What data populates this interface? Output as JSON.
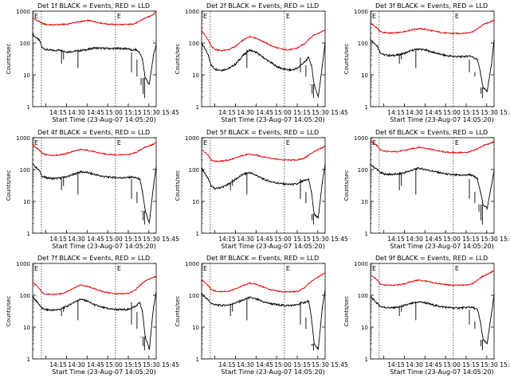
{
  "figure": {
    "time_ticks": [
      "14:15",
      "14:30",
      "14:45",
      "15:00",
      "15:15",
      "15:30",
      "15:45"
    ],
    "xlabel": "Start Time (23-Aug-07 14:05:20)",
    "ylabel": "Counts/sec",
    "y_ticks": [
      "1",
      "10",
      "100",
      "1000"
    ],
    "event_marker": "E",
    "colors": {
      "events": "#000000",
      "lld": "#e00000",
      "axes": "#000000"
    }
  },
  "chart_data": [
    {
      "type": "line",
      "title": "Det 1f BLACK = Events, RED = LLD",
      "ylim": [
        1,
        1000
      ],
      "yscale": "log",
      "grid": false,
      "vlines_min": [
        6.3,
        60.3
      ],
      "x": [
        0,
        5,
        7,
        10,
        15,
        20,
        25,
        30,
        35,
        40,
        45,
        50,
        55,
        60,
        65,
        70,
        72,
        75,
        78,
        80,
        82,
        85,
        88,
        90
      ],
      "series": [
        {
          "name": "Events",
          "values": [
            180,
            120,
            70,
            62,
            58,
            60,
            52,
            55,
            58,
            62,
            70,
            68,
            67,
            67,
            67,
            66,
            58,
            62,
            50,
            30,
            8,
            5,
            40,
            90
          ]
        },
        {
          "name": "LLD",
          "values": [
            600,
            470,
            410,
            380,
            370,
            380,
            390,
            430,
            470,
            510,
            470,
            420,
            390,
            380,
            380,
            380,
            390,
            420,
            480,
            550,
            600,
            680,
            800,
            1000
          ]
        }
      ]
    },
    {
      "type": "line",
      "title": "Det 2f BLACK = Events, RED = LLD",
      "ylim": [
        1,
        1000
      ],
      "yscale": "log",
      "grid": false,
      "vlines_min": [
        6.3,
        60.3
      ],
      "x": [
        0,
        5,
        7,
        10,
        15,
        20,
        25,
        30,
        35,
        40,
        45,
        50,
        55,
        60,
        65,
        70,
        72,
        75,
        78,
        80,
        82,
        85,
        88,
        90
      ],
      "series": [
        {
          "name": "Events",
          "values": [
            100,
            40,
            20,
            15,
            14,
            16,
            22,
            40,
            60,
            50,
            35,
            25,
            18,
            15,
            14,
            16,
            20,
            25,
            35,
            20,
            5,
            2,
            20,
            100
          ]
        },
        {
          "name": "LLD",
          "values": [
            250,
            120,
            80,
            62,
            58,
            62,
            80,
            120,
            160,
            140,
            110,
            85,
            70,
            62,
            62,
            70,
            80,
            95,
            130,
            150,
            180,
            200,
            230,
            260
          ]
        }
      ]
    },
    {
      "type": "line",
      "title": "Det 3f BLACK = Events, RED = LLD",
      "ylim": [
        1,
        1000
      ],
      "yscale": "log",
      "grid": false,
      "vlines_min": [
        6.3,
        60.3
      ],
      "x": [
        0,
        5,
        7,
        10,
        15,
        20,
        25,
        30,
        35,
        40,
        45,
        50,
        55,
        60,
        65,
        70,
        72,
        75,
        78,
        80,
        82,
        85,
        88,
        90
      ],
      "series": [
        {
          "name": "Events",
          "values": [
            130,
            80,
            50,
            42,
            40,
            42,
            48,
            58,
            65,
            60,
            52,
            45,
            40,
            38,
            37,
            38,
            40,
            35,
            30,
            12,
            4,
            3,
            20,
            120
          ]
        },
        {
          "name": "LLD",
          "values": [
            420,
            290,
            230,
            210,
            205,
            210,
            230,
            260,
            280,
            270,
            240,
            220,
            205,
            200,
            200,
            205,
            215,
            230,
            280,
            320,
            380,
            420,
            470,
            520
          ]
        }
      ]
    },
    {
      "type": "line",
      "title": "Det 4f BLACK = Events, RED = LLD",
      "ylim": [
        1,
        1000
      ],
      "yscale": "log",
      "grid": false,
      "vlines_min": [
        6.3,
        60.3
      ],
      "x": [
        0,
        5,
        7,
        10,
        15,
        20,
        25,
        30,
        35,
        40,
        45,
        50,
        55,
        60,
        65,
        70,
        72,
        75,
        78,
        80,
        82,
        85,
        88,
        90
      ],
      "series": [
        {
          "name": "Events",
          "values": [
            150,
            90,
            60,
            55,
            52,
            54,
            60,
            70,
            85,
            80,
            70,
            62,
            58,
            56,
            55,
            56,
            58,
            55,
            50,
            20,
            5,
            2,
            30,
            120
          ]
        },
        {
          "name": "LLD",
          "values": [
            600,
            400,
            320,
            290,
            280,
            290,
            320,
            380,
            420,
            400,
            360,
            320,
            300,
            290,
            290,
            295,
            310,
            340,
            400,
            450,
            500,
            560,
            620,
            700
          ]
        }
      ]
    },
    {
      "type": "line",
      "title": "Det 5f BLACK = Events, RED = LLD",
      "ylim": [
        1,
        1000
      ],
      "yscale": "log",
      "grid": false,
      "vlines_min": [
        6.3,
        60.3
      ],
      "x": [
        0,
        5,
        7,
        10,
        15,
        20,
        25,
        30,
        35,
        40,
        45,
        50,
        55,
        60,
        65,
        70,
        72,
        75,
        78,
        80,
        82,
        85,
        88,
        90
      ],
      "series": [
        {
          "name": "Events",
          "values": [
            110,
            50,
            30,
            25,
            28,
            35,
            50,
            70,
            80,
            65,
            50,
            42,
            38,
            35,
            34,
            35,
            40,
            45,
            50,
            20,
            4,
            3,
            40,
            150
          ]
        },
        {
          "name": "LLD",
          "values": [
            420,
            280,
            200,
            180,
            185,
            200,
            230,
            280,
            300,
            280,
            250,
            230,
            210,
            200,
            198,
            200,
            210,
            230,
            280,
            320,
            370,
            420,
            480,
            560
          ]
        }
      ]
    },
    {
      "type": "line",
      "title": "Det 6f BLACK = Events, RED = LLD",
      "ylim": [
        1,
        1000
      ],
      "yscale": "log",
      "grid": false,
      "vlines_min": [
        6.3,
        60.3
      ],
      "x": [
        0,
        5,
        7,
        10,
        15,
        20,
        25,
        30,
        35,
        40,
        45,
        50,
        55,
        60,
        65,
        70,
        72,
        75,
        78,
        80,
        82,
        85,
        88,
        90
      ],
      "series": [
        {
          "name": "Events",
          "values": [
            140,
            100,
            80,
            72,
            70,
            72,
            80,
            95,
            110,
            100,
            90,
            80,
            72,
            68,
            66,
            67,
            70,
            62,
            50,
            20,
            8,
            6,
            30,
            90
          ]
        },
        {
          "name": "LLD",
          "values": [
            800,
            550,
            420,
            380,
            360,
            370,
            400,
            450,
            500,
            470,
            420,
            380,
            350,
            340,
            340,
            345,
            360,
            390,
            450,
            500,
            560,
            620,
            680,
            750
          ]
        }
      ]
    },
    {
      "type": "line",
      "title": "Det 7f BLACK = Events, RED = LLD",
      "ylim": [
        1,
        1000
      ],
      "yscale": "log",
      "grid": false,
      "vlines_min": [
        6.3,
        60.3
      ],
      "x": [
        0,
        5,
        7,
        10,
        15,
        20,
        25,
        30,
        35,
        40,
        45,
        50,
        55,
        60,
        65,
        70,
        72,
        75,
        78,
        80,
        82,
        85,
        88,
        90
      ],
      "series": [
        {
          "name": "Events",
          "values": [
            90,
            50,
            38,
            35,
            34,
            36,
            45,
            60,
            75,
            65,
            50,
            42,
            38,
            36,
            35,
            36,
            40,
            45,
            60,
            30,
            5,
            2,
            40,
            120
          ]
        },
        {
          "name": "LLD",
          "values": [
            260,
            160,
            120,
            108,
            105,
            110,
            130,
            170,
            210,
            190,
            160,
            135,
            120,
            112,
            110,
            115,
            125,
            150,
            200,
            240,
            280,
            320,
            360,
            400
          ]
        }
      ]
    },
    {
      "type": "line",
      "title": "Det 8f BLACK = Events, RED = LLD",
      "ylim": [
        1,
        1000
      ],
      "yscale": "log",
      "grid": false,
      "vlines_min": [
        6.3,
        60.3
      ],
      "x": [
        0,
        5,
        7,
        10,
        15,
        20,
        25,
        30,
        35,
        40,
        45,
        50,
        55,
        60,
        65,
        70,
        72,
        75,
        78,
        80,
        82,
        85,
        88,
        90
      ],
      "series": [
        {
          "name": "Events",
          "values": [
            110,
            70,
            55,
            50,
            48,
            50,
            58,
            70,
            85,
            75,
            62,
            55,
            50,
            48,
            48,
            50,
            55,
            60,
            65,
            20,
            3,
            2,
            40,
            140
          ]
        },
        {
          "name": "LLD",
          "values": [
            300,
            200,
            150,
            135,
            130,
            135,
            160,
            200,
            240,
            220,
            180,
            150,
            135,
            128,
            128,
            132,
            145,
            170,
            230,
            270,
            320,
            380,
            450,
            520
          ]
        }
      ]
    },
    {
      "type": "line",
      "title": "Det 9f BLACK = Events, RED = LLD",
      "ylim": [
        1,
        1000
      ],
      "yscale": "log",
      "grid": false,
      "vlines_min": [
        6.3,
        60.3
      ],
      "x": [
        0,
        5,
        7,
        10,
        15,
        20,
        25,
        30,
        35,
        40,
        45,
        50,
        55,
        60,
        65,
        70,
        72,
        75,
        78,
        80,
        82,
        85,
        88,
        90
      ],
      "series": [
        {
          "name": "Events",
          "values": [
            90,
            55,
            45,
            42,
            40,
            42,
            48,
            55,
            62,
            58,
            50,
            45,
            42,
            40,
            40,
            41,
            43,
            40,
            35,
            15,
            4,
            3,
            25,
            100
          ]
        },
        {
          "name": "LLD",
          "values": [
            450,
            300,
            230,
            210,
            205,
            210,
            230,
            270,
            300,
            280,
            250,
            230,
            215,
            205,
            205,
            210,
            220,
            240,
            300,
            350,
            400,
            460,
            530,
            600
          ]
        }
      ]
    }
  ]
}
